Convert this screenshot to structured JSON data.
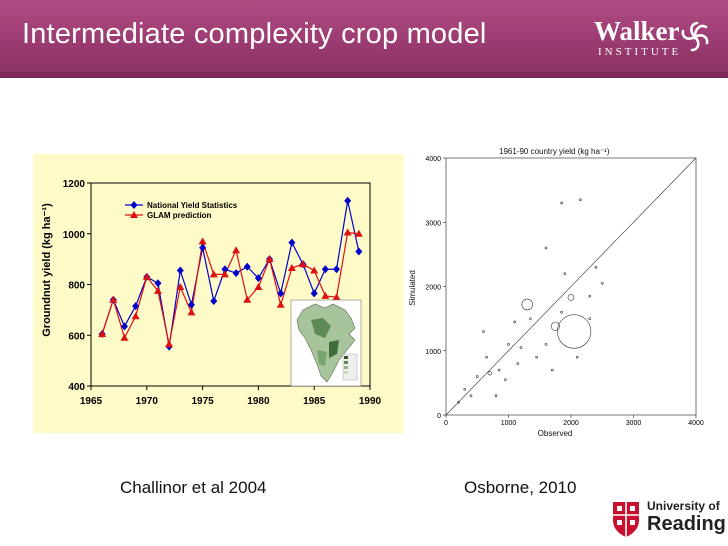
{
  "slide": {
    "title": "Intermediate complexity crop model",
    "logo": {
      "name": "Walker",
      "subtitle": "INSTITUTE"
    },
    "caption_left": "Challinor et al 2004",
    "caption_right": "Osborne, 2010",
    "university_logo": {
      "line1": "University of",
      "line2": "Reading"
    },
    "colors": {
      "header": "#983a6f",
      "chart_bg": "#fffbc8",
      "series_obs": "#0000cc",
      "series_glam": "#dd1111"
    }
  },
  "chart_data": [
    {
      "type": "line",
      "title": "",
      "xlabel": "",
      "ylabel": "Groundnut yield (kg ha⁻¹)",
      "xlim": [
        1965,
        1990
      ],
      "ylim": [
        400,
        1200
      ],
      "x_ticks": [
        "1965",
        "1970",
        "1975",
        "1980",
        "1985",
        "1990"
      ],
      "y_ticks": [
        "400",
        "600",
        "800",
        "1000",
        "1200"
      ],
      "legend_position": "top-left",
      "x": [
        1966,
        1967,
        1968,
        1969,
        1970,
        1971,
        1972,
        1973,
        1974,
        1975,
        1976,
        1977,
        1978,
        1979,
        1980,
        1981,
        1982,
        1983,
        1984,
        1985,
        1986,
        1987,
        1988,
        1989
      ],
      "series": [
        {
          "name": "National Yield Statistics",
          "marker": "diamond",
          "color": "#0000cc",
          "values": [
            605,
            740,
            635,
            715,
            830,
            805,
            555,
            855,
            720,
            945,
            735,
            860,
            845,
            870,
            825,
            900,
            765,
            965,
            880,
            765,
            860,
            860,
            1130,
            930
          ]
        },
        {
          "name": "GLAM prediction",
          "marker": "triangle",
          "color": "#dd1111",
          "values": [
            605,
            740,
            590,
            675,
            830,
            775,
            565,
            790,
            690,
            970,
            840,
            840,
            935,
            740,
            790,
            900,
            720,
            865,
            880,
            855,
            755,
            750,
            1005,
            1000
          ]
        }
      ]
    },
    {
      "type": "scatter",
      "title": "1961-90 country yield (kg ha⁻¹)",
      "xlabel": "Observed",
      "ylabel": "Simulated",
      "xlim": [
        0,
        4000
      ],
      "ylim": [
        0,
        4000
      ],
      "x_ticks": [
        "0",
        "1000",
        "2000",
        "3000",
        "4000"
      ],
      "y_ticks": [
        "0",
        "1000",
        "2000",
        "3000",
        "4000"
      ],
      "reference_line": "1:1",
      "points": [
        {
          "x": 1300,
          "y": 1720,
          "r": 9
        },
        {
          "x": 1750,
          "y": 1380,
          "r": 7
        },
        {
          "x": 2000,
          "y": 1830,
          "r": 5
        },
        {
          "x": 2050,
          "y": 1300,
          "r": 28
        },
        {
          "x": 700,
          "y": 650,
          "r": 3
        },
        {
          "x": 300,
          "y": 400,
          "r": 1
        },
        {
          "x": 500,
          "y": 600,
          "r": 1
        },
        {
          "x": 650,
          "y": 900,
          "r": 1
        },
        {
          "x": 850,
          "y": 700,
          "r": 1
        },
        {
          "x": 1000,
          "y": 1100,
          "r": 1
        },
        {
          "x": 950,
          "y": 550,
          "r": 1
        },
        {
          "x": 1150,
          "y": 800,
          "r": 1
        },
        {
          "x": 1200,
          "y": 1050,
          "r": 1
        },
        {
          "x": 1450,
          "y": 900,
          "r": 1
        },
        {
          "x": 1600,
          "y": 1100,
          "r": 1
        },
        {
          "x": 1700,
          "y": 700,
          "r": 1
        },
        {
          "x": 1350,
          "y": 1500,
          "r": 1
        },
        {
          "x": 1850,
          "y": 1600,
          "r": 1
        },
        {
          "x": 2300,
          "y": 1850,
          "r": 1
        },
        {
          "x": 2500,
          "y": 2050,
          "r": 1
        },
        {
          "x": 1600,
          "y": 2600,
          "r": 1
        },
        {
          "x": 1850,
          "y": 3300,
          "r": 1
        },
        {
          "x": 2150,
          "y": 3350,
          "r": 1
        },
        {
          "x": 2400,
          "y": 2300,
          "r": 1
        },
        {
          "x": 400,
          "y": 300,
          "r": 1
        },
        {
          "x": 200,
          "y": 200,
          "r": 1
        },
        {
          "x": 800,
          "y": 300,
          "r": 1
        },
        {
          "x": 2100,
          "y": 900,
          "r": 1
        },
        {
          "x": 1900,
          "y": 2200,
          "r": 1
        },
        {
          "x": 1100,
          "y": 1450,
          "r": 1
        },
        {
          "x": 600,
          "y": 1300,
          "r": 1
        },
        {
          "x": 2300,
          "y": 1500,
          "r": 1
        }
      ]
    }
  ]
}
